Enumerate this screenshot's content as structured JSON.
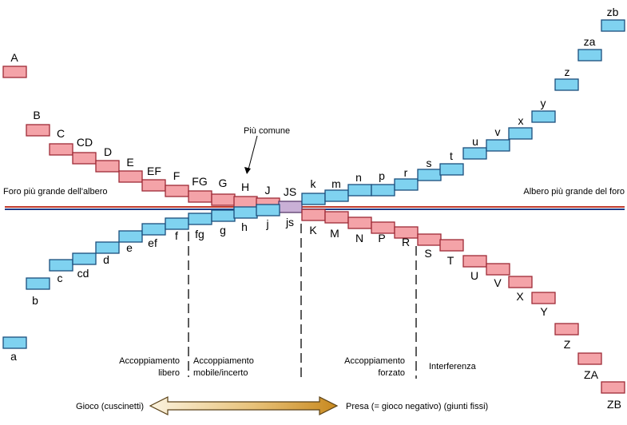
{
  "hole_labels": [
    "A",
    "B",
    "C",
    "CD",
    "D",
    "E",
    "EF",
    "F",
    "FG",
    "G",
    "H",
    "J",
    "JS",
    "K",
    "M",
    "N",
    "P",
    "R",
    "S",
    "T",
    "U",
    "V",
    "X",
    "Y",
    "Z",
    "ZA",
    "ZB"
  ],
  "shaft_labels": [
    "a",
    "b",
    "c",
    "cd",
    "d",
    "e",
    "ef",
    "f",
    "fg",
    "g",
    "h",
    "j",
    "js",
    "k",
    "m",
    "n",
    "p",
    "r",
    "s",
    "t",
    "u",
    "v",
    "x",
    "y",
    "z",
    "za",
    "zb"
  ],
  "annotations": {
    "most_common": "Più comune",
    "hole_larger": "Foro più grande dell'albero",
    "shaft_larger": "Albero più grande del foro",
    "fit_free_1": "Accoppiamento",
    "fit_free_2": "libero",
    "fit_mobile_1": "Accoppiamento",
    "fit_mobile_2": "mobile/incerto",
    "fit_forced_1": "Accoppiamento",
    "fit_forced_2": "forzato",
    "interference": "Interferenza",
    "clearance": "Gioco (cuscinetti)",
    "grip": "Presa (= gioco negativo) (giunti fissi)"
  },
  "colors": {
    "hole": "#f4a3a8",
    "shaft": "#7fd2f0",
    "zero_line_red": "#c0392b",
    "zero_line_blue": "#1f3c88"
  }
}
